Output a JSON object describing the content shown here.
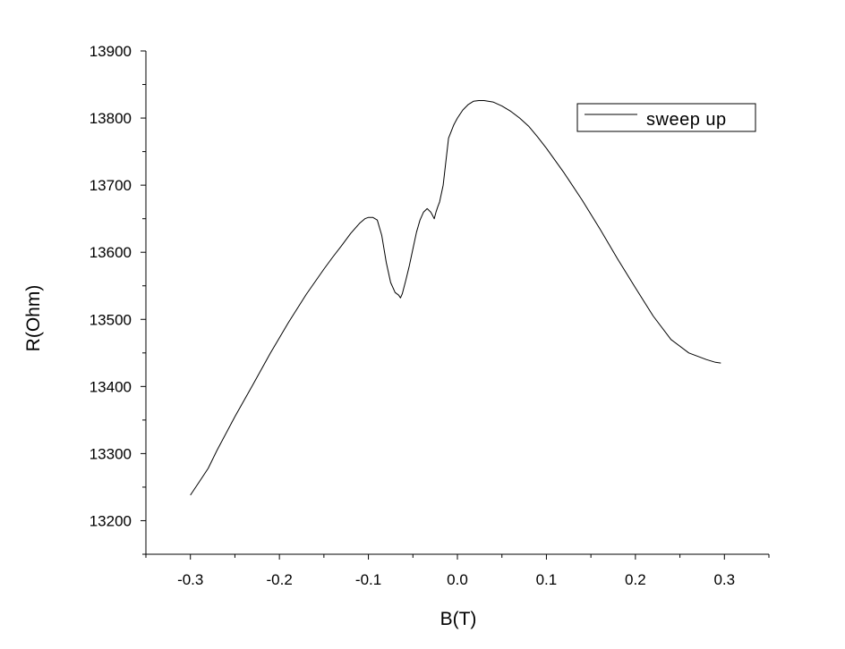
{
  "chart_data": {
    "type": "line",
    "title": "",
    "xlabel": "B(T)",
    "ylabel": "R(Ohm)",
    "xlim": [
      -0.35,
      0.35
    ],
    "ylim": [
      13150,
      13900
    ],
    "xticks": [
      -0.3,
      -0.2,
      -0.1,
      0.0,
      0.1,
      0.2,
      0.3
    ],
    "xtick_labels": [
      "-0.3",
      "-0.2",
      "-0.1",
      "0.0",
      "0.1",
      "0.2",
      "0.3"
    ],
    "yticks": [
      13200,
      13300,
      13400,
      13500,
      13600,
      13700,
      13800,
      13900
    ],
    "ytick_labels": [
      "13200",
      "13300",
      "13400",
      "13500",
      "13600",
      "13700",
      "13800",
      "13900"
    ],
    "grid": false,
    "legend_position": "top-right",
    "series": [
      {
        "name": "sweep up",
        "color": "#000000",
        "x": [
          -0.3,
          -0.29,
          -0.28,
          -0.27,
          -0.25,
          -0.23,
          -0.21,
          -0.19,
          -0.17,
          -0.15,
          -0.14,
          -0.13,
          -0.12,
          -0.11,
          -0.104,
          -0.1,
          -0.095,
          -0.09,
          -0.085,
          -0.08,
          -0.075,
          -0.07,
          -0.066,
          -0.064,
          -0.062,
          -0.058,
          -0.054,
          -0.05,
          -0.046,
          -0.042,
          -0.038,
          -0.034,
          -0.03,
          -0.028,
          -0.026,
          -0.024,
          -0.022,
          -0.02,
          -0.016,
          -0.01,
          -0.004,
          0.0,
          0.006,
          0.012,
          0.018,
          0.024,
          0.03,
          0.04,
          0.05,
          0.06,
          0.07,
          0.08,
          0.09,
          0.1,
          0.12,
          0.14,
          0.16,
          0.18,
          0.2,
          0.22,
          0.24,
          0.26,
          0.28,
          0.29,
          0.296
        ],
        "y": [
          13238,
          13258,
          13278,
          13305,
          13355,
          13402,
          13450,
          13495,
          13537,
          13575,
          13593,
          13610,
          13628,
          13643,
          13650,
          13652,
          13652,
          13648,
          13625,
          13585,
          13555,
          13540,
          13536,
          13532,
          13538,
          13558,
          13580,
          13605,
          13630,
          13648,
          13660,
          13665,
          13660,
          13655,
          13650,
          13660,
          13668,
          13675,
          13700,
          13770,
          13790,
          13800,
          13812,
          13820,
          13825,
          13826,
          13826,
          13824,
          13818,
          13810,
          13800,
          13788,
          13772,
          13755,
          13718,
          13678,
          13635,
          13590,
          13547,
          13505,
          13470,
          13450,
          13440,
          13436,
          13435
        ]
      }
    ]
  }
}
